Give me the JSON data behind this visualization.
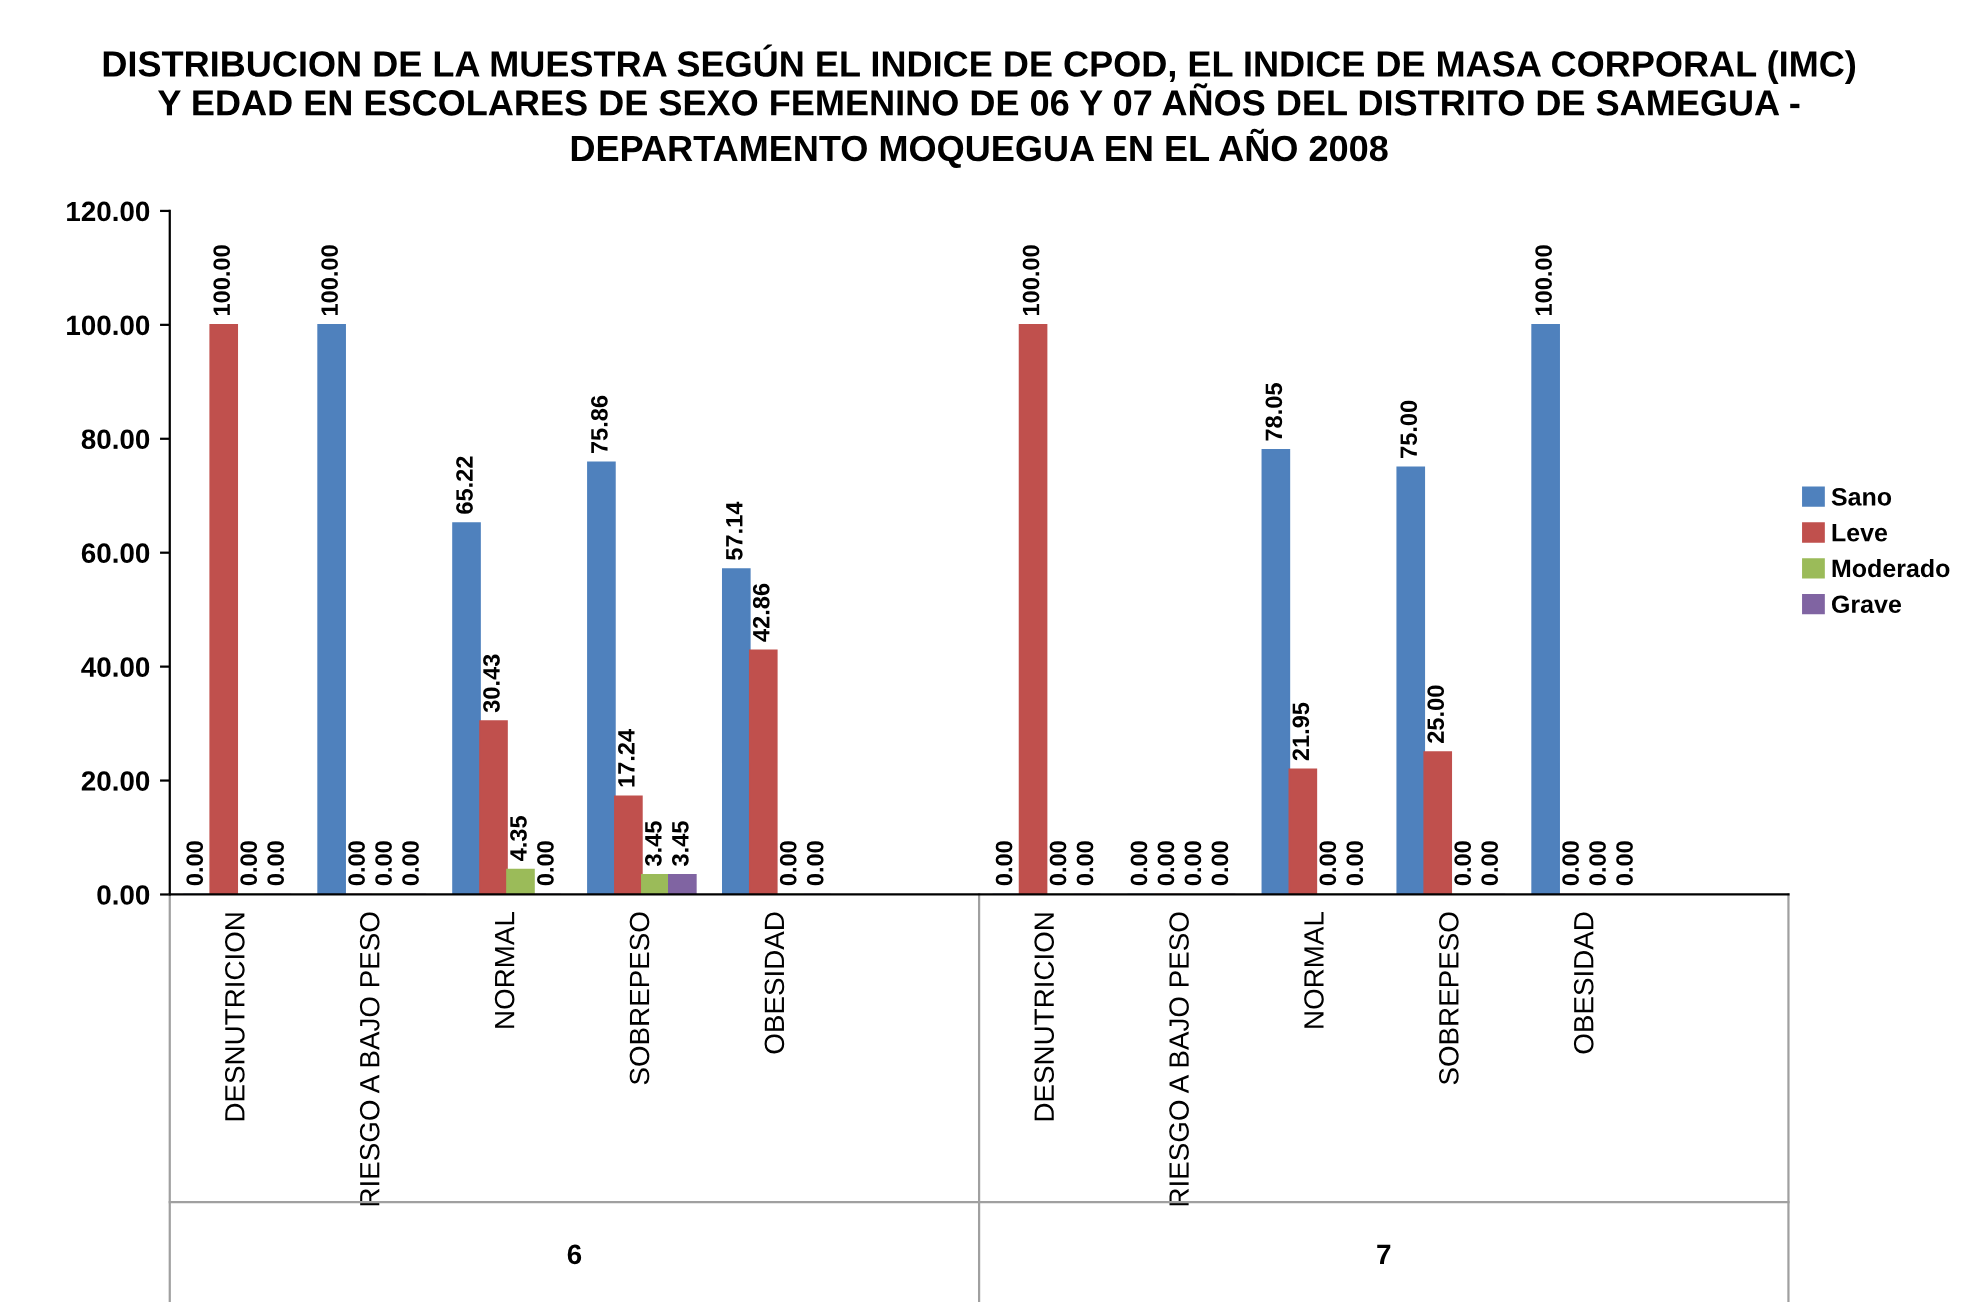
{
  "chart_data": {
    "type": "bar",
    "title": "DISTRIBUCION DE LA MUESTRA SEGÚN EL INDICE DE CPOD, EL INDICE DE MASA CORPORAL (IMC)\nY EDAD EN ESCOLARES DE SEXO FEMENINO DE 06 Y 07 AÑOS DEL DISTRITO DE SAMEGUA -\nDEPARTAMENTO MOQUEGUA EN EL AÑO 2008",
    "categories": [
      "DESNUTRICION",
      "RIESGO A BAJO PESO",
      "NORMAL",
      "SOBREPESO",
      "OBESIDAD",
      null,
      "DESNUTRICION",
      "RIESGO A BAJO PESO",
      "NORMAL",
      "SOBREPESO",
      "OBESIDAD",
      null
    ],
    "annotations": [
      "6",
      "7"
    ],
    "series": [
      {
        "name": "Sano",
        "color": "#4f81bd",
        "values": [
          0,
          100,
          65.22,
          75.86,
          57.14,
          null,
          0,
          0,
          78.05,
          75,
          100,
          null
        ],
        "value_labels": [
          "0.00",
          "100.00",
          "65.22",
          "75.86",
          "57.14",
          null,
          "0.00",
          "0.00",
          "78.05",
          "75.00",
          "100.00",
          null
        ]
      },
      {
        "name": "Leve",
        "color": "#c0504d",
        "values": [
          100,
          0,
          30.43,
          17.24,
          42.86,
          null,
          100,
          0,
          21.95,
          25,
          0,
          null
        ],
        "value_labels": [
          "100.00",
          "0.00",
          "30.43",
          "17.24",
          "42.86",
          null,
          "100.00",
          "0.00",
          "21.95",
          "25.00",
          "0.00",
          null
        ]
      },
      {
        "name": "Moderado",
        "color": "#9bbb59",
        "values": [
          0,
          0,
          4.35,
          3.45,
          0,
          null,
          0,
          0,
          0,
          0,
          0,
          null
        ],
        "value_labels": [
          "0.00",
          "0.00",
          "4.35",
          "3.45",
          "0.00",
          null,
          "0.00",
          "0.00",
          "0.00",
          "0.00",
          "0.00",
          null
        ]
      },
      {
        "name": "Grave",
        "color": "#8064a2",
        "values": [
          0,
          0,
          0,
          3.45,
          0,
          null,
          0,
          0,
          0,
          0,
          0,
          null
        ],
        "value_labels": [
          "0.00",
          "0.00",
          "0.00",
          "3.45",
          "0.00",
          null,
          "0.00",
          "0.00",
          "0.00",
          "0.00",
          "0.00",
          null
        ]
      }
    ],
    "ylim": [
      0,
      120
    ],
    "yticks": [
      {
        "value": 0,
        "label": "0.00"
      },
      {
        "value": 20,
        "label": "20.00"
      },
      {
        "value": 40,
        "label": "40.00"
      },
      {
        "value": 60,
        "label": "60.00"
      },
      {
        "value": 80,
        "label": "80.00"
      },
      {
        "value": 100,
        "label": "100.00"
      },
      {
        "value": 120,
        "label": "120.00"
      }
    ],
    "grid": false,
    "legend": "right"
  }
}
